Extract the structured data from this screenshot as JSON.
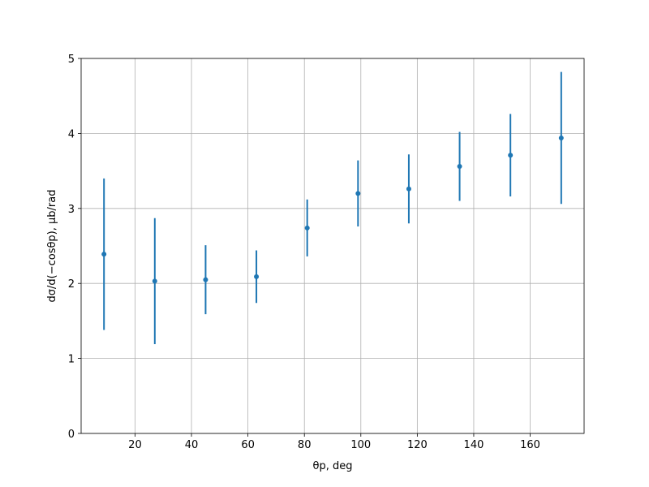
{
  "chart_data": {
    "type": "errorbar",
    "x_label": "θp, deg",
    "y_label": "dσ/d(−cosθp), μb/rad",
    "x": [
      9,
      27,
      45,
      63,
      81,
      99,
      117,
      135,
      153,
      171
    ],
    "series": [
      {
        "color": "#1f77b4",
        "values": [
          2.39,
          2.03,
          2.05,
          2.09,
          2.74,
          3.2,
          3.26,
          3.56,
          3.71,
          3.94
        ],
        "errors": [
          1.01,
          0.84,
          0.46,
          0.35,
          0.38,
          0.44,
          0.46,
          0.46,
          0.55,
          0.88
        ]
      }
    ],
    "xlim": [
      0.9,
      179.1
    ],
    "ylim": [
      0,
      5
    ],
    "xticks": [
      20,
      40,
      60,
      80,
      100,
      120,
      140,
      160
    ],
    "yticks": [
      0,
      1,
      2,
      3,
      4,
      5
    ],
    "grid": true
  }
}
